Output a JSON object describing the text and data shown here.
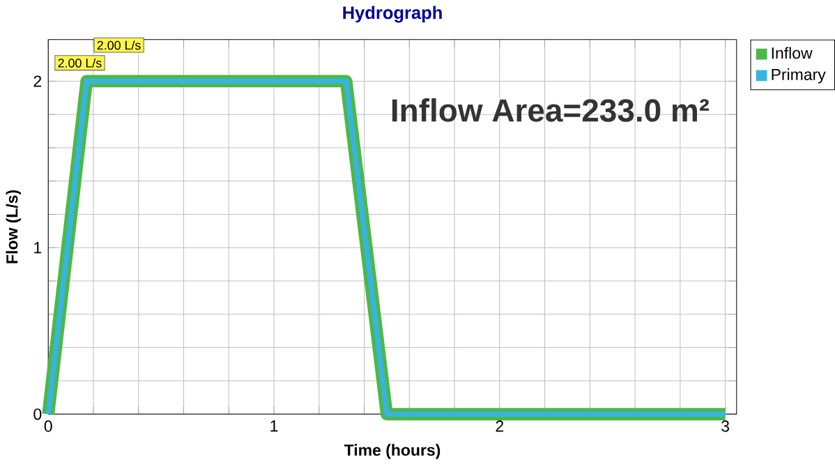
{
  "chart_data": {
    "type": "line",
    "title": "Hydrograph",
    "xlabel": "Time  (hours)",
    "ylabel": "Flow  (L/s)",
    "x": [
      0,
      0.17,
      1.32,
      1.5,
      3
    ],
    "series": [
      {
        "name": "Inflow",
        "color": "#4cb848",
        "values": [
          0,
          2,
          2,
          0,
          0
        ],
        "value_labels": [
          null,
          "2.00 L/s",
          null,
          null,
          null
        ]
      },
      {
        "name": "Primary",
        "color": "#3ab4dc",
        "values": [
          0,
          2,
          2,
          0,
          0
        ],
        "value_labels": [
          null,
          "2.00 L/s",
          null,
          null,
          null
        ]
      }
    ],
    "xlim": [
      0,
      3.05
    ],
    "ylim": [
      0,
      2.25
    ],
    "xticks": [
      0,
      {
        "value": 0.2,
        "label": null
      },
      {
        "value": 0.4,
        "label": null
      },
      {
        "value": 0.6,
        "label": null
      },
      {
        "value": 0.8,
        "label": null
      },
      1,
      {
        "value": 1.2,
        "label": null
      },
      {
        "value": 1.4,
        "label": null
      },
      {
        "value": 1.6,
        "label": null
      },
      {
        "value": 1.8,
        "label": null
      },
      2,
      {
        "value": 2.2,
        "label": null
      },
      {
        "value": 2.4,
        "label": null
      },
      {
        "value": 2.6,
        "label": null
      },
      {
        "value": 2.8,
        "label": null
      },
      3
    ],
    "yticks": [
      0,
      {
        "value": 0.2,
        "label": null
      },
      {
        "value": 0.4,
        "label": null
      },
      {
        "value": 0.6,
        "label": null
      },
      {
        "value": 0.8,
        "label": null
      },
      1,
      {
        "value": 1.2,
        "label": null
      },
      {
        "value": 1.4,
        "label": null
      },
      {
        "value": 1.6,
        "label": null
      },
      {
        "value": 1.8,
        "label": null
      },
      2
    ],
    "grid": true,
    "legend": "top right",
    "annotations": [
      "Inflow Area=233.0 m²"
    ]
  }
}
